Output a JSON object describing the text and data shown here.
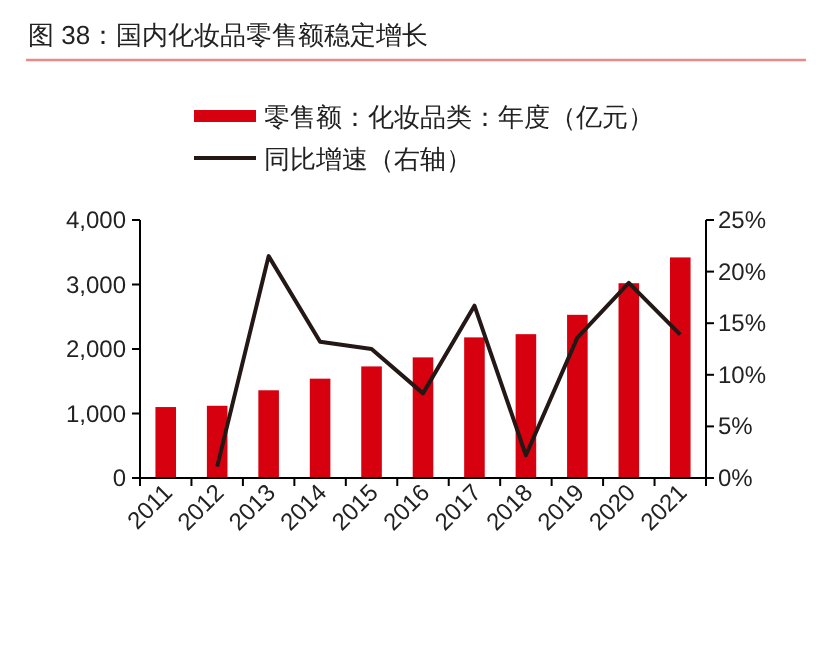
{
  "chart_data": {
    "type": "bar",
    "title": "图 38：国内化妆品零售额稳定增长",
    "categories": [
      "2011",
      "2012",
      "2013",
      "2014",
      "2015",
      "2016",
      "2017",
      "2018",
      "2019",
      "2020",
      "2021"
    ],
    "series": [
      {
        "name": "零售额：化妆品类：年度（亿元）",
        "color": "#d7000f",
        "values": [
          1100,
          1120,
          1360,
          1540,
          1730,
          1870,
          2180,
          2230,
          2530,
          3020,
          3420
        ]
      },
      {
        "name": "同比增速（右轴）",
        "type": "line",
        "axis": "y2",
        "color": "#231815",
        "values": [
          null,
          1.1,
          21.5,
          13.2,
          12.5,
          8.2,
          16.7,
          2.2,
          13.6,
          18.9,
          13.9
        ]
      }
    ],
    "ylim": [
      0,
      4000
    ],
    "yticks": [
      0,
      {
        "value": 1000,
        "label": "1,000"
      },
      {
        "value": 2000,
        "label": "2,000"
      },
      {
        "value": 3000,
        "label": "3,000"
      },
      {
        "value": 4000,
        "label": "4,000"
      }
    ],
    "y2lim": [
      0,
      25
    ],
    "y2ticks": [
      {
        "value": 0,
        "label": "0%"
      },
      {
        "value": 5,
        "label": "5%"
      },
      {
        "value": 10,
        "label": "10%"
      },
      {
        "value": 15,
        "label": "15%"
      },
      {
        "value": 20,
        "label": "20%"
      },
      {
        "value": 25,
        "label": "25%"
      }
    ],
    "legend": "top",
    "grid": false,
    "marker": "none",
    "line_style": "solid"
  }
}
